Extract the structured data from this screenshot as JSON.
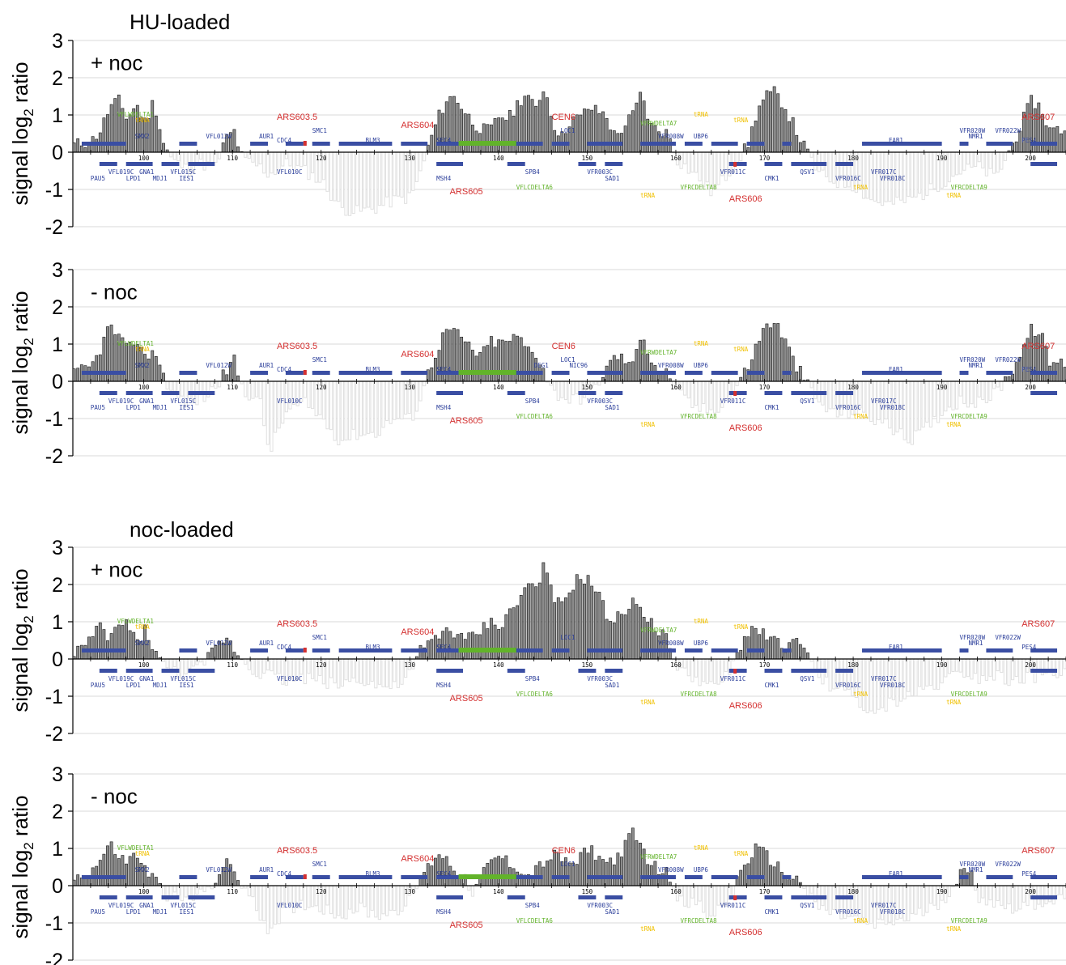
{
  "groups": [
    {
      "title": "HU-loaded"
    },
    {
      "title": "noc-loaded"
    }
  ],
  "colors": {
    "positive_bar": "#8c8c8c",
    "negative_bar": "#e0e0e0",
    "gene_bar": "#3a4ea3",
    "gene_label": "#2b3e9a",
    "ars_label": "#d43030",
    "delta_label": "#62b32a",
    "trna_label": "#f0c000",
    "grid": "#d9d9d9"
  },
  "features": {
    "top_genes": [
      "VFL019C",
      "PAU5",
      "LPD1",
      "GNA1",
      "MDJ1",
      "VFL015C",
      "IES1",
      "VFL010C"
    ],
    "top_genes_right": [
      "SMX2",
      "VFL012W",
      "AUR1",
      "CDC4",
      "SMC1",
      "BLM3",
      "SEC4",
      "MSH4",
      "SPB4",
      "VFR003C",
      "SAD1",
      "VFR011C",
      "CMK1",
      "QSV1",
      "VFR016C",
      "VFR017C",
      "VFR018C",
      "FAB1",
      "NMR1",
      "VFR020W",
      "VFR022W",
      "PES4",
      "DEG1",
      "NIC96",
      "LOC1",
      "VFR008W",
      "UBP6",
      "CEN6"
    ],
    "ars": [
      "ARS603.5",
      "ARS604",
      "ARS605",
      "ARS606",
      "ARS607"
    ],
    "deltas": [
      "VFLWDELTA1",
      "VFLCDELTA6",
      "VFRCDELTA8",
      "VFRCDELTA9",
      "VFRWDELTA7"
    ],
    "trna": "tRNA",
    "coordinate_ticks": [
      "100",
      "110",
      "120",
      "130",
      "140",
      "150",
      "160",
      "170",
      "180",
      "190",
      "200"
    ]
  },
  "chart_data": [
    {
      "type": "bar",
      "group": "HU-loaded",
      "panel_label": "+ noc",
      "ylabel_main": "signal log",
      "ylabel_sub": "2",
      "ylabel_tail": " ratio",
      "ylim": [
        -2,
        3
      ],
      "yticks": [
        "3",
        "2",
        "1",
        "0",
        "-1",
        "-2"
      ],
      "x_unit": "kb",
      "xlim": [
        92,
        204
      ],
      "grid": true,
      "profile": [
        [
          92,
          0.2
        ],
        [
          94,
          0.3
        ],
        [
          95,
          0.6
        ],
        [
          96,
          1.2
        ],
        [
          97,
          1.4
        ],
        [
          98,
          0.9
        ],
        [
          99,
          1.3
        ],
        [
          100,
          0.8
        ],
        [
          101,
          1.4
        ],
        [
          102,
          0.3
        ],
        [
          103,
          -0.2
        ],
        [
          105,
          -0.5
        ],
        [
          106,
          -0.3
        ],
        [
          108,
          -0.4
        ],
        [
          109,
          0.3
        ],
        [
          110,
          0.6
        ],
        [
          111,
          -0.2
        ],
        [
          113,
          -0.4
        ],
        [
          114,
          -0.6
        ],
        [
          116,
          -0.3
        ],
        [
          118,
          -0.5
        ],
        [
          120,
          -0.8
        ],
        [
          122,
          -1.5
        ],
        [
          124,
          -1.6
        ],
        [
          126,
          -1.5
        ],
        [
          128,
          -1.3
        ],
        [
          130,
          -1.2
        ],
        [
          131,
          -0.6
        ],
        [
          132,
          0.2
        ],
        [
          133,
          0.9
        ],
        [
          134,
          1.4
        ],
        [
          135,
          1.5
        ],
        [
          136,
          1.1
        ],
        [
          137,
          0.8
        ],
        [
          138,
          0.6
        ],
        [
          139,
          0.6
        ],
        [
          140,
          1.0
        ],
        [
          141,
          0.9
        ],
        [
          142,
          1.3
        ],
        [
          143,
          1.6
        ],
        [
          144,
          1.1
        ],
        [
          145,
          1.8
        ],
        [
          146,
          0.8
        ],
        [
          147,
          0.4
        ],
        [
          148,
          0.9
        ],
        [
          149,
          0.9
        ],
        [
          150,
          1.2
        ],
        [
          151,
          1.1
        ],
        [
          152,
          1.0
        ],
        [
          153,
          0.4
        ],
        [
          154,
          0.7
        ],
        [
          155,
          1.0
        ],
        [
          156,
          1.6
        ],
        [
          157,
          0.7
        ],
        [
          158,
          0.6
        ],
        [
          159,
          0.5
        ],
        [
          160,
          -0.2
        ],
        [
          162,
          -0.6
        ],
        [
          164,
          -1.1
        ],
        [
          166,
          -0.5
        ],
        [
          168,
          0.2
        ],
        [
          169,
          1.1
        ],
        [
          170,
          1.5
        ],
        [
          171,
          1.6
        ],
        [
          172,
          1.3
        ],
        [
          173,
          0.8
        ],
        [
          174,
          0.3
        ],
        [
          176,
          -0.6
        ],
        [
          178,
          -0.8
        ],
        [
          180,
          -0.9
        ],
        [
          182,
          -1.3
        ],
        [
          184,
          -1.4
        ],
        [
          186,
          -1.3
        ],
        [
          188,
          -1.1
        ],
        [
          190,
          -0.8
        ],
        [
          192,
          -0.5
        ],
        [
          194,
          -0.4
        ],
        [
          196,
          -0.7
        ],
        [
          198,
          0.3
        ],
        [
          200,
          1.4
        ],
        [
          201,
          1.2
        ],
        [
          202,
          0.6
        ]
      ]
    },
    {
      "type": "bar",
      "group": "HU-loaded",
      "panel_label": "- noc",
      "ylabel_main": "signal log",
      "ylabel_sub": "2",
      "ylabel_tail": " ratio",
      "ylim": [
        -2,
        3
      ],
      "yticks": [
        "3",
        "2",
        "1",
        "0",
        "-1",
        "-2"
      ],
      "x_unit": "kb",
      "xlim": [
        92,
        204
      ],
      "grid": true,
      "profile": [
        [
          92,
          0.2
        ],
        [
          94,
          0.4
        ],
        [
          95,
          0.9
        ],
        [
          96,
          1.5
        ],
        [
          97,
          1.2
        ],
        [
          98,
          0.8
        ],
        [
          99,
          1.2
        ],
        [
          100,
          0.6
        ],
        [
          101,
          0.9
        ],
        [
          102,
          0.2
        ],
        [
          103,
          -0.3
        ],
        [
          105,
          -0.6
        ],
        [
          107,
          -0.4
        ],
        [
          109,
          0.2
        ],
        [
          110,
          0.6
        ],
        [
          111,
          -0.2
        ],
        [
          113,
          -0.6
        ],
        [
          114,
          -1.9
        ],
        [
          116,
          -0.8
        ],
        [
          118,
          -0.6
        ],
        [
          120,
          -1.0
        ],
        [
          122,
          -1.6
        ],
        [
          124,
          -1.4
        ],
        [
          126,
          -1.4
        ],
        [
          128,
          -1.0
        ],
        [
          130,
          -1.0
        ],
        [
          131,
          -0.5
        ],
        [
          132,
          0.3
        ],
        [
          133,
          0.9
        ],
        [
          134,
          1.4
        ],
        [
          135,
          1.3
        ],
        [
          136,
          1.1
        ],
        [
          137,
          0.8
        ],
        [
          138,
          0.7
        ],
        [
          139,
          1.1
        ],
        [
          140,
          1.0
        ],
        [
          141,
          1.1
        ],
        [
          142,
          1.2
        ],
        [
          143,
          0.9
        ],
        [
          144,
          0.8
        ],
        [
          145,
          0.3
        ],
        [
          146,
          -0.3
        ],
        [
          148,
          -0.5
        ],
        [
          150,
          -0.4
        ],
        [
          152,
          0.3
        ],
        [
          153,
          0.7
        ],
        [
          154,
          0.6
        ],
        [
          155,
          0.4
        ],
        [
          156,
          1.4
        ],
        [
          157,
          0.6
        ],
        [
          158,
          0.3
        ],
        [
          159,
          0.2
        ],
        [
          160,
          -0.3
        ],
        [
          162,
          -0.7
        ],
        [
          164,
          -0.8
        ],
        [
          166,
          -0.4
        ],
        [
          168,
          0.4
        ],
        [
          169,
          1.0
        ],
        [
          170,
          1.5
        ],
        [
          171,
          1.6
        ],
        [
          172,
          1.2
        ],
        [
          173,
          0.6
        ],
        [
          174,
          0.2
        ],
        [
          176,
          -0.6
        ],
        [
          178,
          -0.9
        ],
        [
          180,
          -0.8
        ],
        [
          182,
          -1.0
        ],
        [
          184,
          -1.2
        ],
        [
          186,
          -1.6
        ],
        [
          188,
          -1.3
        ],
        [
          190,
          -0.8
        ],
        [
          192,
          -0.5
        ],
        [
          194,
          -0.6
        ],
        [
          196,
          -0.3
        ],
        [
          198,
          0.4
        ],
        [
          200,
          1.4
        ],
        [
          201,
          1.3
        ],
        [
          202,
          0.5
        ]
      ]
    },
    {
      "type": "bar",
      "group": "noc-loaded",
      "panel_label": "+ noc",
      "ylabel_main": "signal log",
      "ylabel_sub": "2",
      "ylabel_tail": " ratio",
      "ylim": [
        -2,
        3
      ],
      "yticks": [
        "3",
        "2",
        "1",
        "0",
        "-1",
        "-2"
      ],
      "x_unit": "kb",
      "xlim": [
        92,
        204
      ],
      "grid": true,
      "profile": [
        [
          92,
          0.2
        ],
        [
          94,
          0.5
        ],
        [
          95,
          0.9
        ],
        [
          96,
          0.5
        ],
        [
          97,
          0.9
        ],
        [
          98,
          1.0
        ],
        [
          99,
          0.4
        ],
        [
          100,
          0.8
        ],
        [
          101,
          0.3
        ],
        [
          102,
          -0.2
        ],
        [
          104,
          -0.4
        ],
        [
          106,
          -0.3
        ],
        [
          108,
          0.3
        ],
        [
          109,
          0.6
        ],
        [
          110,
          0.3
        ],
        [
          112,
          -0.3
        ],
        [
          114,
          -0.4
        ],
        [
          116,
          -0.6
        ],
        [
          118,
          -0.5
        ],
        [
          120,
          -0.6
        ],
        [
          122,
          -0.7
        ],
        [
          124,
          -0.5
        ],
        [
          126,
          -0.7
        ],
        [
          128,
          -0.8
        ],
        [
          130,
          -0.4
        ],
        [
          131,
          0.2
        ],
        [
          132,
          0.4
        ],
        [
          133,
          0.6
        ],
        [
          134,
          0.8
        ],
        [
          135,
          0.7
        ],
        [
          136,
          0.5
        ],
        [
          137,
          0.6
        ],
        [
          138,
          0.8
        ],
        [
          139,
          1.0
        ],
        [
          140,
          0.9
        ],
        [
          141,
          1.2
        ],
        [
          142,
          1.5
        ],
        [
          143,
          2.0
        ],
        [
          144,
          1.9
        ],
        [
          145,
          2.5
        ],
        [
          146,
          1.6
        ],
        [
          147,
          1.4
        ],
        [
          148,
          1.9
        ],
        [
          149,
          2.2
        ],
        [
          150,
          2.1
        ],
        [
          151,
          1.8
        ],
        [
          152,
          1.2
        ],
        [
          153,
          1.0
        ],
        [
          154,
          1.3
        ],
        [
          155,
          1.5
        ],
        [
          156,
          1.4
        ],
        [
          157,
          1.0
        ],
        [
          158,
          0.7
        ],
        [
          159,
          0.5
        ],
        [
          160,
          -0.3
        ],
        [
          162,
          -0.5
        ],
        [
          164,
          -0.8
        ],
        [
          166,
          -0.4
        ],
        [
          167,
          0.3
        ],
        [
          168,
          0.7
        ],
        [
          169,
          0.9
        ],
        [
          170,
          0.6
        ],
        [
          171,
          0.5
        ],
        [
          172,
          0.3
        ],
        [
          173,
          0.5
        ],
        [
          174,
          0.3
        ],
        [
          176,
          -0.5
        ],
        [
          178,
          -0.8
        ],
        [
          180,
          -1.0
        ],
        [
          182,
          -1.6
        ],
        [
          184,
          -1.2
        ],
        [
          186,
          -1.0
        ],
        [
          188,
          -0.8
        ],
        [
          190,
          -0.6
        ],
        [
          192,
          -0.3
        ],
        [
          194,
          -0.5
        ],
        [
          196,
          -0.4
        ],
        [
          198,
          -0.6
        ],
        [
          200,
          -0.5
        ],
        [
          202,
          -0.4
        ]
      ]
    },
    {
      "type": "bar",
      "group": "noc-loaded",
      "panel_label": "- noc",
      "ylabel_main": "signal log",
      "ylabel_sub": "2",
      "ylabel_tail": " ratio",
      "ylim": [
        -2,
        3
      ],
      "yticks": [
        "3",
        "2",
        "1",
        "0",
        "-1",
        "-2"
      ],
      "x_unit": "kb",
      "xlim": [
        92,
        204
      ],
      "grid": true,
      "profile": [
        [
          92,
          0.2
        ],
        [
          94,
          0.4
        ],
        [
          95,
          0.7
        ],
        [
          96,
          1.1
        ],
        [
          97,
          0.8
        ],
        [
          98,
          0.6
        ],
        [
          99,
          0.9
        ],
        [
          100,
          0.4
        ],
        [
          101,
          0.2
        ],
        [
          102,
          -0.2
        ],
        [
          104,
          -0.4
        ],
        [
          106,
          -0.3
        ],
        [
          108,
          0.2
        ],
        [
          109,
          0.6
        ],
        [
          110,
          0.4
        ],
        [
          112,
          -0.4
        ],
        [
          114,
          -1.2
        ],
        [
          116,
          -0.6
        ],
        [
          118,
          -0.5
        ],
        [
          120,
          -0.6
        ],
        [
          122,
          -0.8
        ],
        [
          124,
          -0.6
        ],
        [
          126,
          -0.8
        ],
        [
          128,
          -0.7
        ],
        [
          130,
          -0.4
        ],
        [
          131,
          0.2
        ],
        [
          132,
          0.5
        ],
        [
          133,
          0.9
        ],
        [
          134,
          0.7
        ],
        [
          135,
          0.4
        ],
        [
          136,
          0.3
        ],
        [
          137,
          -0.2
        ],
        [
          138,
          0.3
        ],
        [
          139,
          0.6
        ],
        [
          140,
          0.8
        ],
        [
          141,
          0.6
        ],
        [
          142,
          0.5
        ],
        [
          143,
          0.2
        ],
        [
          144,
          0.4
        ],
        [
          145,
          0.6
        ],
        [
          146,
          0.8
        ],
        [
          147,
          0.7
        ],
        [
          148,
          0.6
        ],
        [
          149,
          0.8
        ],
        [
          150,
          1.0
        ],
        [
          151,
          0.8
        ],
        [
          152,
          0.6
        ],
        [
          153,
          0.7
        ],
        [
          154,
          1.0
        ],
        [
          155,
          1.4
        ],
        [
          156,
          1.0
        ],
        [
          157,
          0.6
        ],
        [
          158,
          0.4
        ],
        [
          159,
          0.3
        ],
        [
          160,
          -0.3
        ],
        [
          162,
          -0.5
        ],
        [
          164,
          -0.8
        ],
        [
          166,
          -0.4
        ],
        [
          167,
          0.3
        ],
        [
          168,
          0.7
        ],
        [
          169,
          1.0
        ],
        [
          170,
          0.8
        ],
        [
          171,
          0.6
        ],
        [
          172,
          0.3
        ],
        [
          173,
          0.2
        ],
        [
          174,
          0.1
        ],
        [
          176,
          -0.6
        ],
        [
          178,
          -0.8
        ],
        [
          180,
          -0.9
        ],
        [
          182,
          -1.1
        ],
        [
          184,
          -1.0
        ],
        [
          186,
          -0.9
        ],
        [
          188,
          -0.7
        ],
        [
          190,
          -0.4
        ],
        [
          192,
          0.3
        ],
        [
          193,
          0.4
        ],
        [
          194,
          -0.3
        ],
        [
          196,
          -0.5
        ],
        [
          198,
          -0.6
        ],
        [
          200,
          -0.5
        ],
        [
          202,
          -0.4
        ]
      ]
    }
  ]
}
